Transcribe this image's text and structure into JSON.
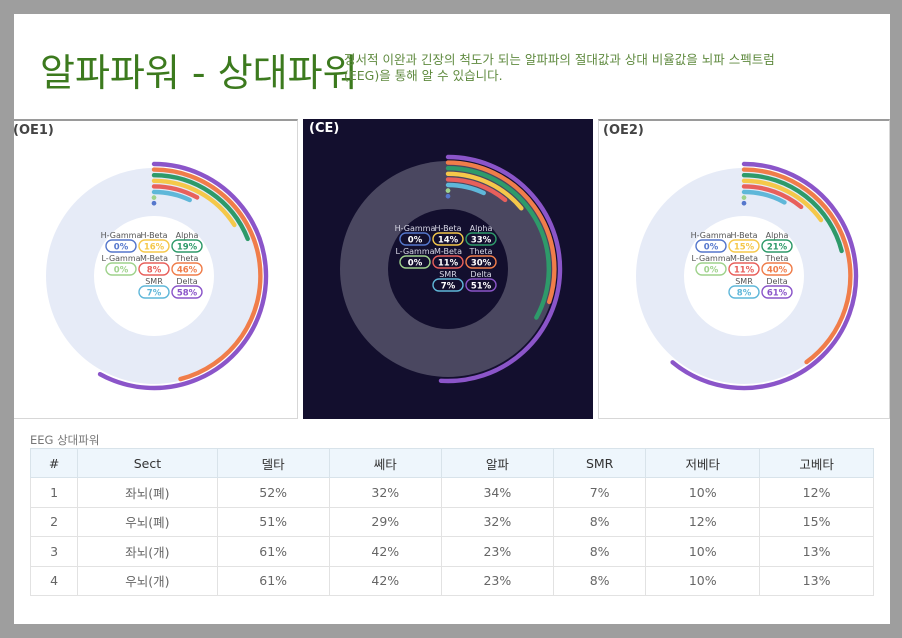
{
  "header": {
    "title": "알파파워 - 상대파워",
    "subtitle": "정서적 이완과 긴장의 척도가 되는 알파파의 절대값과 상대 비율값을 뇌파 스펙트럼(EEG)을 통해 알 수 있습니다."
  },
  "colors": {
    "delta": "#8b55c9",
    "theta": "#f07d4a",
    "alpha": "#2e9a6a",
    "h_beta": "#f5c84a",
    "m_beta": "#e8605c",
    "smr": "#5fb7d9",
    "l_gamma": "#9fd28c",
    "h_gamma": "#5577cc"
  },
  "chart_data": [
    {
      "type": "radial-bar",
      "panel": "(OE1)",
      "theme": "light",
      "labels": [
        "H-Gamma",
        "H-Beta",
        "Alpha",
        "L-Gamma",
        "M-Beta",
        "Theta",
        "SMR",
        "Delta"
      ],
      "values": [
        "0%",
        "16%",
        "19%",
        "0%",
        "8%",
        "46%",
        "7%",
        "58%"
      ]
    },
    {
      "type": "radial-bar",
      "panel": "(CE)",
      "theme": "dark",
      "labels": [
        "H-Gamma",
        "H-Beta",
        "Alpha",
        "L-Gamma",
        "M-Beta",
        "Theta",
        "SMR",
        "Delta"
      ],
      "values": [
        "0%",
        "14%",
        "33%",
        "0%",
        "11%",
        "30%",
        "7%",
        "51%"
      ]
    },
    {
      "type": "radial-bar",
      "panel": "(OE2)",
      "theme": "light",
      "labels": [
        "H-Gamma",
        "H-Beta",
        "Alpha",
        "L-Gamma",
        "M-Beta",
        "Theta",
        "SMR",
        "Delta"
      ],
      "values": [
        "0%",
        "15%",
        "21%",
        "0%",
        "11%",
        "40%",
        "8%",
        "61%"
      ]
    }
  ],
  "table": {
    "caption": "EEG 상대파워",
    "headers": [
      "#",
      "Sect",
      "델타",
      "쎄타",
      "알파",
      "SMR",
      "저베타",
      "고베타"
    ],
    "rows": [
      [
        "1",
        "좌뇌(폐)",
        "52%",
        "32%",
        "34%",
        "7%",
        "10%",
        "12%"
      ],
      [
        "2",
        "우뇌(폐)",
        "51%",
        "29%",
        "32%",
        "8%",
        "12%",
        "15%"
      ],
      [
        "3",
        "좌뇌(개)",
        "61%",
        "42%",
        "23%",
        "8%",
        "10%",
        "13%"
      ],
      [
        "4",
        "우뇌(개)",
        "61%",
        "42%",
        "23%",
        "8%",
        "10%",
        "13%"
      ]
    ]
  }
}
